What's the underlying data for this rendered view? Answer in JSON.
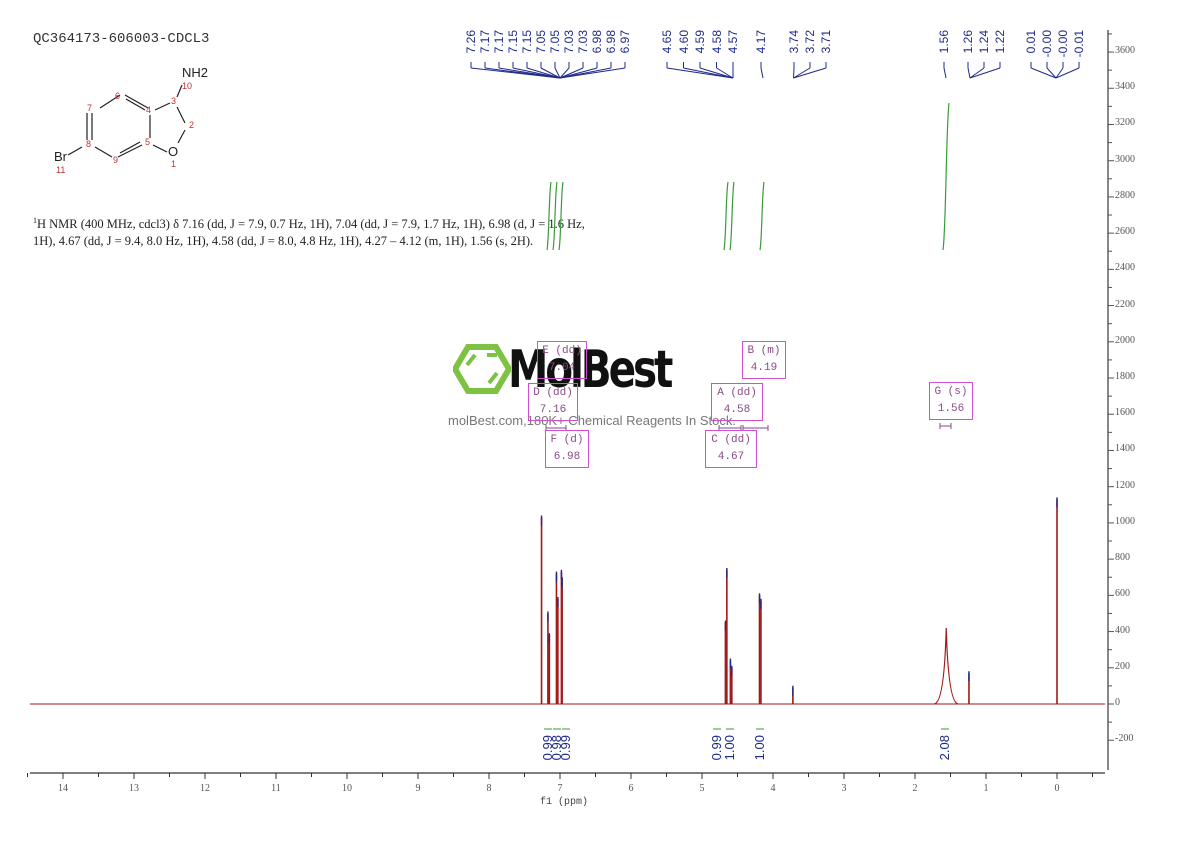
{
  "header": {
    "sample_id": "QC364173-606003-CDCL3"
  },
  "structure": {
    "substituents": [
      "NH2",
      "Br",
      "O"
    ],
    "atom_numbers": [
      "1",
      "2",
      "3",
      "4",
      "5",
      "6",
      "7",
      "8",
      "9",
      "10",
      "11"
    ]
  },
  "nmr_description": {
    "sup": "1",
    "text": "H NMR (400 MHz, cdcl3) δ 7.16 (dd, J = 7.9, 0.7 Hz, 1H), 7.04 (dd, J = 7.9, 1.7 Hz, 1H), 6.98 (d, J = 1.6 Hz, 1H), 4.67 (dd, J = 9.4, 8.0 Hz, 1H), 4.58 (dd, J = 8.0, 4.8 Hz, 1H), 4.27 – 4.12 (m, 1H), 1.56 (s, 2H)."
  },
  "watermark": {
    "logo": "MolBest",
    "tagline": "molBest.com,180K+ Chemical Reagents In Stock."
  },
  "colors": {
    "spectrum": "#a01818",
    "peak_labels": "#1f2a8a",
    "integral": "#3a9a3a",
    "multiplet_box": "#d04fd0",
    "logo_green": "#7dc242"
  },
  "chart_data": {
    "type": "line",
    "title": "QC364173-606003-CDCL3",
    "xlabel": "f1 (ppm)",
    "ylabel": "",
    "xlim": [
      14.5,
      -0.7
    ],
    "ylim": [
      -350,
      3700
    ],
    "x_ticks": [
      "14",
      "13",
      "12",
      "11",
      "10",
      "9",
      "8",
      "7",
      "6",
      "5",
      "4",
      "3",
      "2",
      "1",
      "0"
    ],
    "y_ticks": [
      "3600",
      "3400",
      "3200",
      "3000",
      "2800",
      "2600",
      "2400",
      "2200",
      "2000",
      "1800",
      "1600",
      "1400",
      "1200",
      "1000",
      "800",
      "600",
      "400",
      "200",
      "0",
      "-200"
    ],
    "peak_labels_group1": [
      "7.26",
      "7.17",
      "7.17",
      "7.15",
      "7.15",
      "7.05",
      "7.05",
      "7.03",
      "7.03",
      "6.98",
      "6.98",
      "6.97"
    ],
    "peak_labels_group2": [
      "4.65",
      "4.60",
      "4.59",
      "4.58",
      "4.57"
    ],
    "peak_labels_group3": [
      "4.17"
    ],
    "peak_labels_group4": [
      "3.74",
      "3.72",
      "3.71"
    ],
    "peak_labels_group5": [
      "1.56"
    ],
    "peak_labels_group6": [
      "1.26",
      "1.24",
      "1.22"
    ],
    "peak_labels_group7": [
      "0.01",
      "-0.00",
      "-0.00",
      "-0.01"
    ],
    "peaks": [
      {
        "ppm": 7.26,
        "intensity": 1030
      },
      {
        "ppm": 7.17,
        "intensity": 500
      },
      {
        "ppm": 7.15,
        "intensity": 380
      },
      {
        "ppm": 7.05,
        "intensity": 720
      },
      {
        "ppm": 7.03,
        "intensity": 580
      },
      {
        "ppm": 6.98,
        "intensity": 730
      },
      {
        "ppm": 6.97,
        "intensity": 690
      },
      {
        "ppm": 4.67,
        "intensity": 450
      },
      {
        "ppm": 4.65,
        "intensity": 740
      },
      {
        "ppm": 4.6,
        "intensity": 240
      },
      {
        "ppm": 4.58,
        "intensity": 200
      },
      {
        "ppm": 4.19,
        "intensity": 600
      },
      {
        "ppm": 4.17,
        "intensity": 570
      },
      {
        "ppm": 3.72,
        "intensity": 90
      },
      {
        "ppm": 1.56,
        "intensity": 420
      },
      {
        "ppm": 1.24,
        "intensity": 170
      },
      {
        "ppm": 0.0,
        "intensity": 1130
      }
    ],
    "integrals": [
      {
        "ppm": 7.16,
        "value": "0.99"
      },
      {
        "ppm": 7.04,
        "value": "0.98"
      },
      {
        "ppm": 6.98,
        "value": "0.99"
      },
      {
        "ppm": 4.67,
        "value": "0.99"
      },
      {
        "ppm": 4.58,
        "value": "1.00"
      },
      {
        "ppm": 4.19,
        "value": "1.00"
      },
      {
        "ppm": 1.56,
        "value": "2.08"
      }
    ],
    "multiplets": [
      {
        "label": "E (dd)",
        "shift": "7.04"
      },
      {
        "label": "D (dd)",
        "shift": "7.16"
      },
      {
        "label": "F (d)",
        "shift": "6.98"
      },
      {
        "label": "B (m)",
        "shift": "4.19"
      },
      {
        "label": "A (dd)",
        "shift": "4.58"
      },
      {
        "label": "C (dd)",
        "shift": "4.67"
      },
      {
        "label": "G (s)",
        "shift": "1.56"
      }
    ]
  }
}
